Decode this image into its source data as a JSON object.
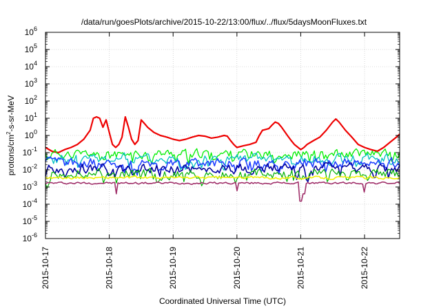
{
  "chart_data": {
    "type": "line",
    "title": "/data/run/goesPlots/archive/2015-10-22/13:00/flux/../flux/5daysMoonFluxes.txt",
    "xlabel": "Coordinated Universal Time (UTC)",
    "ylabel_parts": [
      "protons/cm",
      "2",
      "-s-sr-MeV"
    ],
    "y_scale": "log",
    "ylim": [
      1e-06,
      1000000.0
    ],
    "y_ticks": [
      {
        "base": "10",
        "exp": "-6",
        "value": 1e-06
      },
      {
        "base": "10",
        "exp": "-5",
        "value": 1e-05
      },
      {
        "base": "10",
        "exp": "-4",
        "value": 0.0001
      },
      {
        "base": "10",
        "exp": "-3",
        "value": 0.001
      },
      {
        "base": "10",
        "exp": "-2",
        "value": 0.01
      },
      {
        "base": "10",
        "exp": "-1",
        "value": 0.1
      },
      {
        "base": "10",
        "exp": "0",
        "value": 1
      },
      {
        "base": "10",
        "exp": "1",
        "value": 10
      },
      {
        "base": "10",
        "exp": "2",
        "value": 100
      },
      {
        "base": "10",
        "exp": "3",
        "value": 1000
      },
      {
        "base": "10",
        "exp": "4",
        "value": 10000
      },
      {
        "base": "10",
        "exp": "5",
        "value": 100000
      },
      {
        "base": "10",
        "exp": "6",
        "value": 1000000
      }
    ],
    "x_range_days": [
      0,
      5.55
    ],
    "x_ticks": [
      {
        "label": "2015-10-17",
        "day": 0
      },
      {
        "label": "2015-10-18",
        "day": 1
      },
      {
        "label": "2015-10-19",
        "day": 2
      },
      {
        "label": "2015-10-20",
        "day": 3
      },
      {
        "label": "2015-10-21",
        "day": 4
      },
      {
        "label": "2015-10-22",
        "day": 5
      }
    ],
    "grid": true,
    "series": [
      {
        "color": "#ee0000",
        "width": 2.2,
        "points": [
          [
            0,
            0.2
          ],
          [
            0.1,
            0.12
          ],
          [
            0.2,
            0.1
          ],
          [
            0.3,
            0.15
          ],
          [
            0.4,
            0.2
          ],
          [
            0.5,
            0.3
          ],
          [
            0.6,
            0.6
          ],
          [
            0.7,
            2
          ],
          [
            0.75,
            10
          ],
          [
            0.8,
            12
          ],
          [
            0.85,
            10
          ],
          [
            0.9,
            3
          ],
          [
            0.95,
            8
          ],
          [
            1.0,
            1.5
          ],
          [
            1.05,
            0.3
          ],
          [
            1.1,
            0.2
          ],
          [
            1.15,
            0.3
          ],
          [
            1.2,
            0.8
          ],
          [
            1.25,
            12
          ],
          [
            1.3,
            3
          ],
          [
            1.35,
            0.6
          ],
          [
            1.4,
            0.3
          ],
          [
            1.45,
            0.5
          ],
          [
            1.5,
            8
          ],
          [
            1.55,
            5
          ],
          [
            1.6,
            3
          ],
          [
            1.7,
            1.5
          ],
          [
            1.8,
            1
          ],
          [
            1.9,
            0.8
          ],
          [
            2.0,
            0.6
          ],
          [
            2.1,
            0.5
          ],
          [
            2.2,
            0.6
          ],
          [
            2.3,
            0.8
          ],
          [
            2.4,
            1.0
          ],
          [
            2.5,
            0.9
          ],
          [
            2.6,
            0.7
          ],
          [
            2.7,
            0.8
          ],
          [
            2.8,
            1.0
          ],
          [
            2.85,
            0.9
          ],
          [
            2.9,
            0.5
          ],
          [
            2.95,
            0.3
          ],
          [
            3.0,
            0.2
          ],
          [
            3.1,
            0.25
          ],
          [
            3.2,
            0.3
          ],
          [
            3.3,
            0.4
          ],
          [
            3.35,
            1.0
          ],
          [
            3.4,
            2
          ],
          [
            3.5,
            2.5
          ],
          [
            3.55,
            4
          ],
          [
            3.6,
            6
          ],
          [
            3.65,
            5
          ],
          [
            3.7,
            3
          ],
          [
            3.8,
            0.9
          ],
          [
            3.85,
            0.5
          ],
          [
            3.9,
            0.3
          ],
          [
            4.0,
            0.15
          ],
          [
            4.05,
            0.2
          ],
          [
            4.1,
            0.3
          ],
          [
            4.2,
            0.5
          ],
          [
            4.3,
            0.8
          ],
          [
            4.4,
            2
          ],
          [
            4.5,
            6
          ],
          [
            4.55,
            9
          ],
          [
            4.6,
            6
          ],
          [
            4.7,
            2
          ],
          [
            4.8,
            0.8
          ],
          [
            4.9,
            0.3
          ],
          [
            5.0,
            0.2
          ],
          [
            5.1,
            0.15
          ],
          [
            5.2,
            0.12
          ],
          [
            5.3,
            0.2
          ],
          [
            5.4,
            0.4
          ],
          [
            5.5,
            0.8
          ],
          [
            5.55,
            1.2
          ]
        ]
      },
      {
        "color": "#00ee00",
        "width": 1.3,
        "center": 0.09,
        "spread": 0.4,
        "seed": 11
      },
      {
        "color": "#00c0c0",
        "width": 1.3,
        "center": 0.045,
        "spread": 0.45,
        "seed": 23
      },
      {
        "color": "#2040ff",
        "width": 1.6,
        "center": 0.025,
        "spread": 0.45,
        "seed": 37
      },
      {
        "color": "#0000a0",
        "width": 1.6,
        "center": 0.012,
        "spread": 0.45,
        "seed": 53
      },
      {
        "color": "#00b000",
        "width": 1.2,
        "center": 0.006,
        "spread": 0.45,
        "seed": 71
      },
      {
        "color": "#f0f000",
        "width": 1.6,
        "center": 0.0035,
        "spread": 0.12,
        "seed": 89
      },
      {
        "color": "#a0306a",
        "width": 1.6,
        "center": 0.0017,
        "spread": 0.1,
        "seed": 97,
        "dips": [
          [
            1.1,
            0.0004
          ],
          [
            3.0,
            0.0006
          ],
          [
            4.0,
            0.00015
          ],
          [
            4.05,
            0.0004
          ],
          [
            5.0,
            0.0005
          ]
        ]
      }
    ]
  }
}
